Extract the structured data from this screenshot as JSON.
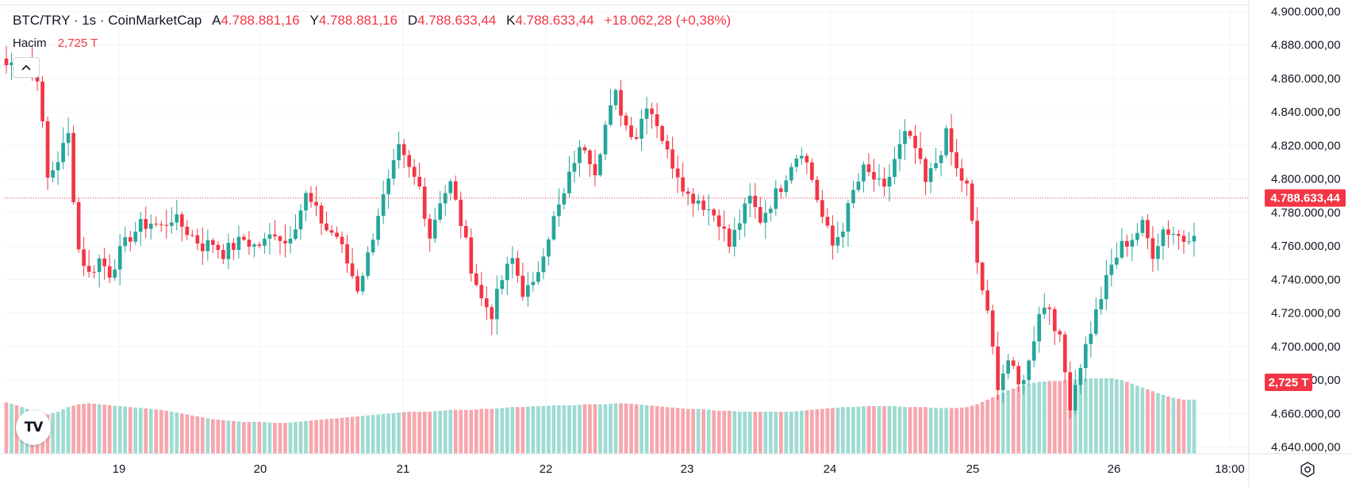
{
  "header": {
    "symbol": "BTC/TRY · 1s · CoinMarketCap",
    "open_label": "A",
    "open_value": "4.788.881,16",
    "high_label": "Y",
    "high_value": "4.788.881,16",
    "low_label": "D",
    "low_value": "4.788.633,44",
    "close_label": "K",
    "close_value": "4.788.633,44",
    "change_value": "+18.062,28 (+0,38%)"
  },
  "volume_legend": {
    "label": "Hacim",
    "value": "2,725 T"
  },
  "colors": {
    "up": "#26a69a",
    "down": "#f23645",
    "up_volume": "#9edbd1",
    "down_volume": "#f7a6ad",
    "grid": "#f0f3fa",
    "price_line": "#f23645"
  },
  "icons": {
    "collapse": "chevron-up-icon",
    "logo": "tradingview-logo-icon",
    "settings": "gear-icon"
  },
  "logo_text": "TV",
  "chart_data": {
    "type": "candlestick",
    "title": "BTC/TRY · 1s · CoinMarketCap",
    "interval": "1h",
    "y_ticks": [
      "4.900.000,00",
      "4.880.000,00",
      "4.860.000,00",
      "4.840.000,00",
      "4.820.000,00",
      "4.800.000,00",
      "4.780.000,00",
      "4.760.000,00",
      "4.740.000,00",
      "4.720.000,00",
      "4.700.000,00",
      "4.680.000,00",
      "4.660.000,00",
      "4.640.000,00"
    ],
    "y_tick_values": [
      4900000,
      4880000,
      4860000,
      4840000,
      4820000,
      4800000,
      4780000,
      4760000,
      4740000,
      4720000,
      4700000,
      4680000,
      4660000,
      4640000
    ],
    "ylim": [
      4636000,
      4904000
    ],
    "x_ticks": [
      "19",
      "20",
      "21",
      "22",
      "23",
      "24",
      "25",
      "26",
      "18:00"
    ],
    "last_price": 4788633.44,
    "last_price_label": "4.788.633,44",
    "last_volume_label": "2,725 T",
    "anchors": [
      [
        0,
        4868000
      ],
      [
        4,
        4872000
      ],
      [
        6,
        4862000
      ],
      [
        8,
        4800000
      ],
      [
        10,
        4812000
      ],
      [
        12,
        4826000
      ],
      [
        13,
        4790000
      ],
      [
        14,
        4758000
      ],
      [
        16,
        4743000
      ],
      [
        18,
        4752000
      ],
      [
        20,
        4744000
      ],
      [
        22,
        4756000
      ],
      [
        24,
        4766000
      ],
      [
        26,
        4772000
      ],
      [
        28,
        4774000
      ],
      [
        30,
        4771000
      ],
      [
        32,
        4777000
      ],
      [
        34,
        4772000
      ],
      [
        36,
        4766000
      ],
      [
        38,
        4760000
      ],
      [
        40,
        4762000
      ],
      [
        42,
        4756000
      ],
      [
        44,
        4760000
      ],
      [
        46,
        4764000
      ],
      [
        48,
        4760000
      ],
      [
        50,
        4762000
      ],
      [
        52,
        4769000
      ],
      [
        54,
        4762000
      ],
      [
        56,
        4774000
      ],
      [
        58,
        4790000
      ],
      [
        60,
        4780000
      ],
      [
        62,
        4770000
      ],
      [
        64,
        4766000
      ],
      [
        66,
        4750000
      ],
      [
        68,
        4735000
      ],
      [
        70,
        4754000
      ],
      [
        72,
        4780000
      ],
      [
        74,
        4797000
      ],
      [
        76,
        4817000
      ],
      [
        78,
        4805000
      ],
      [
        80,
        4795000
      ],
      [
        82,
        4766000
      ],
      [
        84,
        4788000
      ],
      [
        86,
        4797000
      ],
      [
        88,
        4774000
      ],
      [
        90,
        4748000
      ],
      [
        92,
        4728000
      ],
      [
        94,
        4720000
      ],
      [
        96,
        4740000
      ],
      [
        98,
        4752000
      ],
      [
        100,
        4733000
      ],
      [
        102,
        4735000
      ],
      [
        104,
        4758000
      ],
      [
        106,
        4776000
      ],
      [
        108,
        4790000
      ],
      [
        110,
        4812000
      ],
      [
        112,
        4820000
      ],
      [
        114,
        4806000
      ],
      [
        116,
        4832000
      ],
      [
        118,
        4850000
      ],
      [
        120,
        4832000
      ],
      [
        122,
        4826000
      ],
      [
        124,
        4846000
      ],
      [
        126,
        4834000
      ],
      [
        128,
        4815000
      ],
      [
        130,
        4804000
      ],
      [
        132,
        4790000
      ],
      [
        134,
        4788000
      ],
      [
        136,
        4782000
      ],
      [
        138,
        4776000
      ],
      [
        140,
        4760000
      ],
      [
        142,
        4775000
      ],
      [
        144,
        4788000
      ],
      [
        146,
        4776000
      ],
      [
        148,
        4786000
      ],
      [
        150,
        4796000
      ],
      [
        152,
        4810000
      ],
      [
        154,
        4818000
      ],
      [
        156,
        4800000
      ],
      [
        158,
        4777000
      ],
      [
        160,
        4760000
      ],
      [
        162,
        4772000
      ],
      [
        164,
        4792000
      ],
      [
        166,
        4805000
      ],
      [
        168,
        4800000
      ],
      [
        170,
        4792000
      ],
      [
        172,
        4812000
      ],
      [
        174,
        4826000
      ],
      [
        176,
        4818000
      ],
      [
        178,
        4797000
      ],
      [
        180,
        4810000
      ],
      [
        182,
        4826000
      ],
      [
        184,
        4805000
      ],
      [
        186,
        4795000
      ],
      [
        188,
        4750000
      ],
      [
        190,
        4718000
      ],
      [
        192,
        4678000
      ],
      [
        194,
        4692000
      ],
      [
        196,
        4676000
      ],
      [
        198,
        4690000
      ],
      [
        200,
        4722000
      ],
      [
        202,
        4724000
      ],
      [
        204,
        4703000
      ],
      [
        206,
        4666000
      ],
      [
        208,
        4690000
      ],
      [
        210,
        4710000
      ],
      [
        212,
        4730000
      ],
      [
        214,
        4748000
      ],
      [
        216,
        4760000
      ],
      [
        218,
        4765000
      ],
      [
        220,
        4772000
      ],
      [
        222,
        4756000
      ],
      [
        224,
        4770000
      ],
      [
        226,
        4768000
      ],
      [
        228,
        4764000
      ],
      [
        230,
        4770000
      ]
    ],
    "volume_anchors": [
      [
        0,
        0.5
      ],
      [
        2,
        0.47
      ],
      [
        4,
        0.43
      ],
      [
        6,
        0.4
      ],
      [
        8,
        0.37
      ],
      [
        10,
        0.4
      ],
      [
        12,
        0.45
      ],
      [
        14,
        0.48
      ],
      [
        16,
        0.49
      ],
      [
        18,
        0.48
      ],
      [
        20,
        0.47
      ],
      [
        22,
        0.46
      ],
      [
        24,
        0.45
      ],
      [
        26,
        0.44
      ],
      [
        28,
        0.43
      ],
      [
        30,
        0.42
      ],
      [
        32,
        0.4
      ],
      [
        34,
        0.38
      ],
      [
        36,
        0.36
      ],
      [
        38,
        0.34
      ],
      [
        40,
        0.32
      ],
      [
        42,
        0.31
      ],
      [
        44,
        0.3
      ],
      [
        46,
        0.29
      ],
      [
        48,
        0.29
      ],
      [
        50,
        0.29
      ],
      [
        52,
        0.28
      ],
      [
        54,
        0.28
      ],
      [
        56,
        0.29
      ],
      [
        58,
        0.3
      ],
      [
        60,
        0.31
      ],
      [
        62,
        0.32
      ],
      [
        64,
        0.33
      ],
      [
        66,
        0.34
      ],
      [
        68,
        0.35
      ],
      [
        70,
        0.36
      ],
      [
        72,
        0.37
      ],
      [
        74,
        0.38
      ],
      [
        76,
        0.39
      ],
      [
        78,
        0.4
      ],
      [
        80,
        0.4
      ],
      [
        82,
        0.4
      ],
      [
        84,
        0.41
      ],
      [
        86,
        0.42
      ],
      [
        88,
        0.42
      ],
      [
        90,
        0.42
      ],
      [
        92,
        0.43
      ],
      [
        94,
        0.43
      ],
      [
        96,
        0.44
      ],
      [
        98,
        0.45
      ],
      [
        100,
        0.45
      ],
      [
        102,
        0.46
      ],
      [
        104,
        0.46
      ],
      [
        106,
        0.47
      ],
      [
        108,
        0.47
      ],
      [
        110,
        0.47
      ],
      [
        112,
        0.48
      ],
      [
        114,
        0.48
      ],
      [
        116,
        0.48
      ],
      [
        118,
        0.49
      ],
      [
        120,
        0.49
      ],
      [
        122,
        0.48
      ],
      [
        124,
        0.47
      ],
      [
        126,
        0.46
      ],
      [
        128,
        0.45
      ],
      [
        130,
        0.44
      ],
      [
        132,
        0.43
      ],
      [
        134,
        0.43
      ],
      [
        136,
        0.42
      ],
      [
        138,
        0.41
      ],
      [
        140,
        0.41
      ],
      [
        142,
        0.4
      ],
      [
        144,
        0.4
      ],
      [
        146,
        0.4
      ],
      [
        148,
        0.4
      ],
      [
        150,
        0.4
      ],
      [
        152,
        0.4
      ],
      [
        154,
        0.41
      ],
      [
        156,
        0.42
      ],
      [
        158,
        0.43
      ],
      [
        160,
        0.44
      ],
      [
        162,
        0.45
      ],
      [
        164,
        0.45
      ],
      [
        166,
        0.46
      ],
      [
        168,
        0.46
      ],
      [
        170,
        0.46
      ],
      [
        172,
        0.46
      ],
      [
        174,
        0.45
      ],
      [
        176,
        0.45
      ],
      [
        178,
        0.45
      ],
      [
        180,
        0.44
      ],
      [
        182,
        0.44
      ],
      [
        184,
        0.44
      ],
      [
        186,
        0.45
      ],
      [
        188,
        0.48
      ],
      [
        190,
        0.53
      ],
      [
        192,
        0.58
      ],
      [
        194,
        0.63
      ],
      [
        196,
        0.67
      ],
      [
        198,
        0.7
      ],
      [
        200,
        0.72
      ],
      [
        202,
        0.73
      ],
      [
        204,
        0.73
      ],
      [
        206,
        0.74
      ],
      [
        208,
        0.75
      ],
      [
        210,
        0.76
      ],
      [
        212,
        0.76
      ],
      [
        214,
        0.76
      ],
      [
        216,
        0.74
      ],
      [
        218,
        0.7
      ],
      [
        220,
        0.66
      ],
      [
        222,
        0.62
      ],
      [
        224,
        0.58
      ],
      [
        226,
        0.55
      ],
      [
        228,
        0.53
      ],
      [
        230,
        0.53
      ]
    ]
  }
}
